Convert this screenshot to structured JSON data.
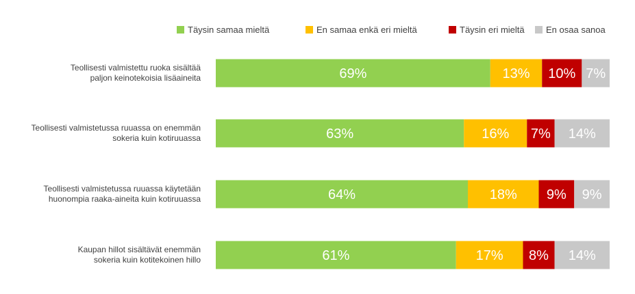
{
  "chart_data": {
    "type": "bar",
    "orientation": "horizontal",
    "stacked": true,
    "title": "",
    "xlabel": "",
    "ylabel": "",
    "xlim": [
      0,
      100
    ],
    "grid": false,
    "legend_position": "top-right",
    "categories": [
      [
        "Teollisesti valmistettu ruoka sisältää",
        "paljon keinotekoisia lisäaineita"
      ],
      [
        "Teollisesti valmistetussa ruuassa on enemmän",
        "sokeria kuin kotiruuassa"
      ],
      [
        "Teollisesti valmistetussa ruuassa käytetään",
        "huonompia raaka-aineita kuin kotiruuassa"
      ],
      [
        "Kaupan hillot sisältävät enemmän",
        "sokeria kuin kotitekoinen hillo"
      ]
    ],
    "series": [
      {
        "name": "Täysin samaa mieltä",
        "color": "#92d050",
        "values": [
          69,
          63,
          64,
          61
        ],
        "labels": [
          "69%",
          "63%",
          "64%",
          "61%"
        ]
      },
      {
        "name": "En samaa enkä eri mieltä",
        "color": "#ffc000",
        "values": [
          13,
          16,
          18,
          17
        ],
        "labels": [
          "13%",
          "16%",
          "18%",
          "17%"
        ]
      },
      {
        "name": "Täysin eri mieltä",
        "color": "#c00000",
        "values": [
          10,
          7,
          9,
          8
        ],
        "labels": [
          "10%",
          "7%",
          "9%",
          "8%"
        ]
      },
      {
        "name": "En osaa sanoa",
        "color": "#c8c8c8",
        "values": [
          7,
          14,
          9,
          14
        ],
        "labels": [
          "7%",
          "14%",
          "9%",
          "14%"
        ]
      }
    ]
  }
}
